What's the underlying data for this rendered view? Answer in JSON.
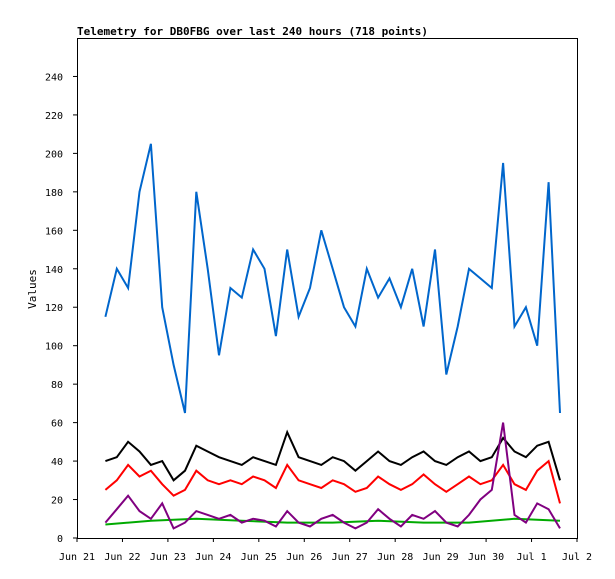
{
  "chart_data": {
    "type": "line",
    "title": "Telemetry for DB0FBG over last 240 hours (718 points)",
    "xlabel": "",
    "ylabel": "Values",
    "x_range": [
      "2024-06-21",
      "2024-07-02"
    ],
    "xticks": [
      "Jun 21",
      "Jun 22",
      "Jun 23",
      "Jun 24",
      "Jun 25",
      "Jun 26",
      "Jun 27",
      "Jun 28",
      "Jun 29",
      "Jun 30",
      "Jul 1",
      "Jul 2"
    ],
    "ylim": [
      0,
      260
    ],
    "yticks": [
      0,
      20,
      40,
      60,
      80,
      100,
      120,
      140,
      160,
      180,
      200,
      220,
      240
    ],
    "grid": false,
    "legend": "none",
    "series": [
      {
        "color": "#0066cc",
        "x": [
          "Jun 21 15:00",
          "Jun 21 21:00",
          "Jun 22 03:00",
          "Jun 22 09:00",
          "Jun 22 15:00",
          "Jun 22 21:00",
          "Jun 23 03:00",
          "Jun 23 09:00",
          "Jun 23 15:00",
          "Jun 23 21:00",
          "Jun 24 03:00",
          "Jun 24 09:00",
          "Jun 24 15:00",
          "Jun 24 21:00",
          "Jun 25 03:00",
          "Jun 25 09:00",
          "Jun 25 15:00",
          "Jun 25 21:00",
          "Jun 26 03:00",
          "Jun 26 09:00",
          "Jun 26 15:00",
          "Jun 26 21:00",
          "Jun 27 03:00",
          "Jun 27 09:00",
          "Jun 27 15:00",
          "Jun 27 21:00",
          "Jun 28 03:00",
          "Jun 28 09:00",
          "Jun 28 15:00",
          "Jun 28 21:00",
          "Jun 29 03:00",
          "Jun 29 09:00",
          "Jun 29 15:00",
          "Jun 29 21:00",
          "Jun 30 03:00",
          "Jun 30 09:00",
          "Jun 30 15:00",
          "Jun 30 21:00",
          "Jul 1 03:00",
          "Jul 1 09:00",
          "Jul 1 15:00"
        ],
        "values": [
          115,
          140,
          130,
          180,
          205,
          120,
          90,
          65,
          180,
          140,
          95,
          130,
          125,
          150,
          140,
          105,
          150,
          115,
          130,
          160,
          140,
          120,
          110,
          140,
          125,
          135,
          120,
          140,
          110,
          150,
          85,
          110,
          140,
          135,
          130,
          195,
          110,
          120,
          100,
          185,
          65
        ]
      },
      {
        "color": "#000000",
        "x": [
          "Jun 21 15:00",
          "Jun 21 21:00",
          "Jun 22 03:00",
          "Jun 22 09:00",
          "Jun 22 15:00",
          "Jun 22 21:00",
          "Jun 23 03:00",
          "Jun 23 09:00",
          "Jun 23 15:00",
          "Jun 23 21:00",
          "Jun 24 03:00",
          "Jun 24 09:00",
          "Jun 24 15:00",
          "Jun 24 21:00",
          "Jun 25 03:00",
          "Jun 25 09:00",
          "Jun 25 15:00",
          "Jun 25 21:00",
          "Jun 26 03:00",
          "Jun 26 09:00",
          "Jun 26 15:00",
          "Jun 26 21:00",
          "Jun 27 03:00",
          "Jun 27 09:00",
          "Jun 27 15:00",
          "Jun 27 21:00",
          "Jun 28 03:00",
          "Jun 28 09:00",
          "Jun 28 15:00",
          "Jun 28 21:00",
          "Jun 29 03:00",
          "Jun 29 09:00",
          "Jun 29 15:00",
          "Jun 29 21:00",
          "Jun 30 03:00",
          "Jun 30 09:00",
          "Jun 30 15:00",
          "Jun 30 21:00",
          "Jul 1 03:00",
          "Jul 1 09:00",
          "Jul 1 15:00"
        ],
        "values": [
          40,
          42,
          50,
          45,
          38,
          40,
          30,
          35,
          48,
          45,
          42,
          40,
          38,
          42,
          40,
          38,
          55,
          42,
          40,
          38,
          42,
          40,
          35,
          40,
          45,
          40,
          38,
          42,
          45,
          40,
          38,
          42,
          45,
          40,
          42,
          52,
          45,
          42,
          48,
          50,
          30
        ]
      },
      {
        "color": "#ff0000",
        "x": [
          "Jun 21 15:00",
          "Jun 21 21:00",
          "Jun 22 03:00",
          "Jun 22 09:00",
          "Jun 22 15:00",
          "Jun 22 21:00",
          "Jun 23 03:00",
          "Jun 23 09:00",
          "Jun 23 15:00",
          "Jun 23 21:00",
          "Jun 24 03:00",
          "Jun 24 09:00",
          "Jun 24 15:00",
          "Jun 24 21:00",
          "Jun 25 03:00",
          "Jun 25 09:00",
          "Jun 25 15:00",
          "Jun 25 21:00",
          "Jun 26 03:00",
          "Jun 26 09:00",
          "Jun 26 15:00",
          "Jun 26 21:00",
          "Jun 27 03:00",
          "Jun 27 09:00",
          "Jun 27 15:00",
          "Jun 27 21:00",
          "Jun 28 03:00",
          "Jun 28 09:00",
          "Jun 28 15:00",
          "Jun 28 21:00",
          "Jun 29 03:00",
          "Jun 29 09:00",
          "Jun 29 15:00",
          "Jun 29 21:00",
          "Jun 30 03:00",
          "Jun 30 09:00",
          "Jun 30 15:00",
          "Jun 30 21:00",
          "Jul 1 03:00",
          "Jul 1 09:00",
          "Jul 1 15:00"
        ],
        "values": [
          25,
          30,
          38,
          32,
          35,
          28,
          22,
          25,
          35,
          30,
          28,
          30,
          28,
          32,
          30,
          26,
          38,
          30,
          28,
          26,
          30,
          28,
          24,
          26,
          32,
          28,
          25,
          28,
          33,
          28,
          24,
          28,
          32,
          28,
          30,
          38,
          28,
          25,
          35,
          40,
          18
        ]
      },
      {
        "color": "#00aa00",
        "x": [
          "Jun 21 15:00",
          "Jun 22 15:00",
          "Jun 23 15:00",
          "Jun 24 15:00",
          "Jun 25 15:00",
          "Jun 26 15:00",
          "Jun 27 15:00",
          "Jun 28 15:00",
          "Jun 29 15:00",
          "Jun 30 15:00",
          "Jul 1 15:00"
        ],
        "values": [
          7,
          9,
          10,
          9,
          8,
          8,
          9,
          8,
          8,
          10,
          9
        ]
      },
      {
        "color": "#800080",
        "x": [
          "Jun 21 15:00",
          "Jun 21 21:00",
          "Jun 22 03:00",
          "Jun 22 09:00",
          "Jun 22 15:00",
          "Jun 22 21:00",
          "Jun 23 03:00",
          "Jun 23 09:00",
          "Jun 23 15:00",
          "Jun 23 21:00",
          "Jun 24 03:00",
          "Jun 24 09:00",
          "Jun 24 15:00",
          "Jun 24 21:00",
          "Jun 25 03:00",
          "Jun 25 09:00",
          "Jun 25 15:00",
          "Jun 25 21:00",
          "Jun 26 03:00",
          "Jun 26 09:00",
          "Jun 26 15:00",
          "Jun 26 21:00",
          "Jun 27 03:00",
          "Jun 27 09:00",
          "Jun 27 15:00",
          "Jun 27 21:00",
          "Jun 28 03:00",
          "Jun 28 09:00",
          "Jun 28 15:00",
          "Jun 28 21:00",
          "Jun 29 03:00",
          "Jun 29 09:00",
          "Jun 29 15:00",
          "Jun 29 21:00",
          "Jun 30 03:00",
          "Jun 30 09:00",
          "Jun 30 15:00",
          "Jun 30 21:00",
          "Jul 1 03:00",
          "Jul 1 09:00",
          "Jul 1 15:00"
        ],
        "values": [
          8,
          15,
          22,
          14,
          10,
          18,
          5,
          8,
          14,
          12,
          10,
          12,
          8,
          10,
          9,
          6,
          14,
          8,
          6,
          10,
          12,
          8,
          5,
          8,
          15,
          10,
          6,
          12,
          10,
          14,
          8,
          6,
          12,
          20,
          25,
          60,
          12,
          8,
          18,
          15,
          5
        ]
      }
    ]
  }
}
